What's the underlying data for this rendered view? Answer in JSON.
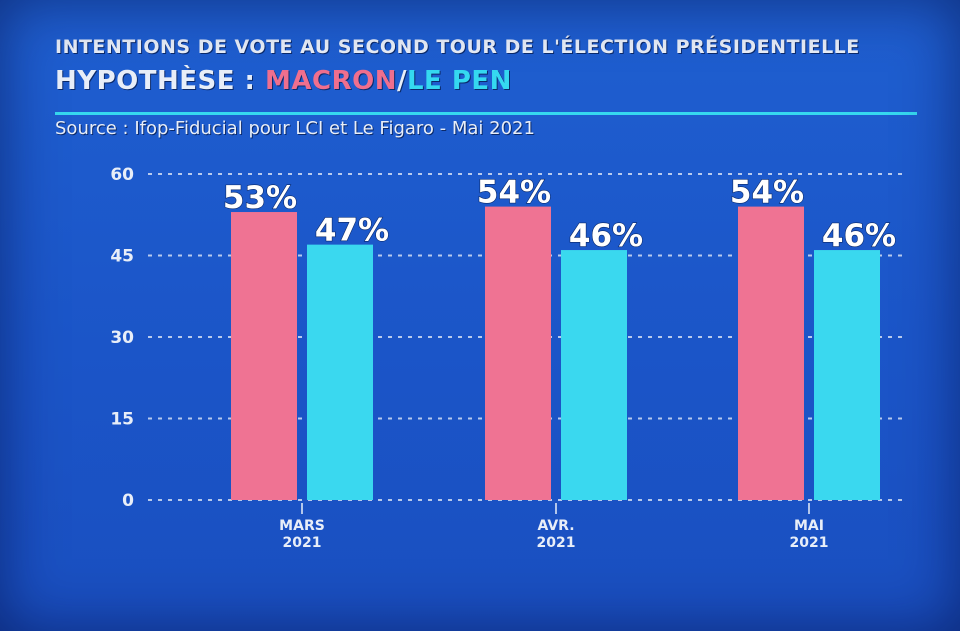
{
  "header": {
    "title": "INTENTIONS DE VOTE AU SECOND TOUR DE L'ÉLECTION PRÉSIDENTIELLE",
    "subtitle_prefix": "HYPOTHÈSE : ",
    "subtitle_a": "MACRON",
    "subtitle_sep": "/",
    "subtitle_b": "LE PEN",
    "source": "Source : Ifop-Fiducial pour LCI et Le Figaro - Mai 2021"
  },
  "chart_data": {
    "type": "bar",
    "title": "INTENTIONS DE VOTE AU SECOND TOUR DE L'ÉLECTION PRÉSIDENTIELLE",
    "subtitle": "HYPOTHÈSE : MACRON/LE PEN",
    "categories": [
      [
        "MARS",
        "2021"
      ],
      [
        "AVR.",
        "2021"
      ],
      [
        "MAI",
        "2021"
      ]
    ],
    "series": [
      {
        "name": "MACRON",
        "color": "#ef7393",
        "values": [
          53,
          54,
          54
        ],
        "labels": [
          "53%",
          "54%",
          "54%"
        ]
      },
      {
        "name": "LE PEN",
        "color": "#3ad8ef",
        "values": [
          47,
          46,
          46
        ],
        "labels": [
          "47%",
          "46%",
          "46%"
        ]
      }
    ],
    "yticks": [
      "0",
      "15",
      "30",
      "45",
      "60"
    ],
    "ylim": [
      0,
      60
    ],
    "grid": true,
    "xlabel": "",
    "ylabel": ""
  }
}
